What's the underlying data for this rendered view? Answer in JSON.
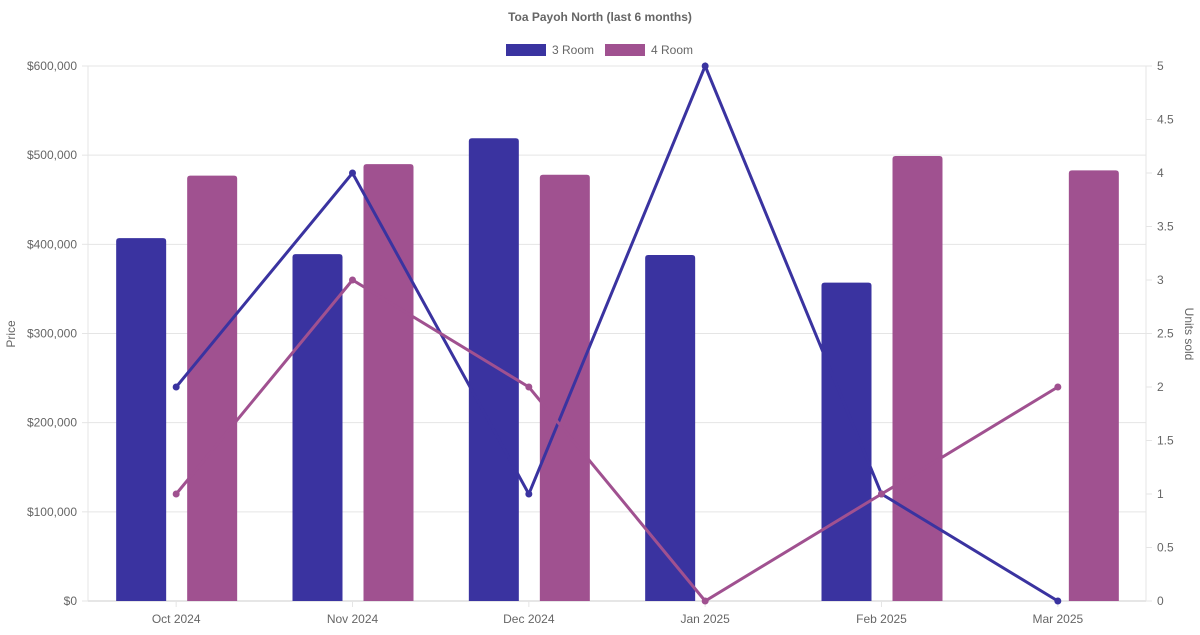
{
  "chart_data": {
    "type": "bar",
    "title": "Toa Payoh North (last 6 months)",
    "categories": [
      "Oct 2024",
      "Nov 2024",
      "Dec 2024",
      "Jan 2025",
      "Feb 2025",
      "Mar 2025"
    ],
    "ylabel": "Price",
    "y2label": "Units sold",
    "ylim": [
      0,
      600000
    ],
    "y2lim": [
      0,
      5
    ],
    "yticks": [
      "$0",
      "$100,000",
      "$200,000",
      "$300,000",
      "$400,000",
      "$500,000",
      "$600,000"
    ],
    "y2ticks": [
      "0",
      "0.5",
      "1",
      "1.5",
      "2",
      "2.5",
      "3",
      "3.5",
      "4",
      "4.5",
      "5"
    ],
    "legend_position": "top",
    "grid": true,
    "series": [
      {
        "name": "3 Room",
        "color": "#3a33a0",
        "price": [
          407000,
          389000,
          519000,
          388000,
          357000,
          null
        ],
        "units": [
          2,
          4,
          1,
          5,
          1,
          0
        ]
      },
      {
        "name": "4 Room",
        "color": "#a05190",
        "price": [
          477000,
          490000,
          478000,
          null,
          499000,
          483000
        ],
        "units": [
          1,
          3,
          2,
          0,
          1,
          2
        ]
      }
    ]
  }
}
